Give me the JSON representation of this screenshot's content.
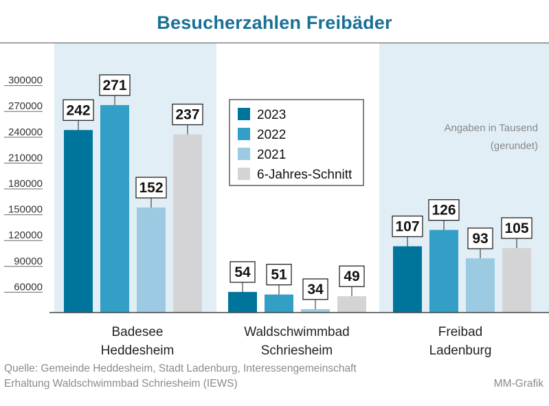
{
  "title": "Besucherzahlen Freibäder",
  "source_line1": "Quelle: Gemeinde Heddesheim, Stadt Ladenburg, Interessengemeinschaft",
  "source_line2": "Erhaltung Waldschwimmbad Schriesheim (IEWS)",
  "credit": "MM-Grafik",
  "note_line1": "Angaben in Tausend",
  "note_line2": "(gerundet)",
  "colors": {
    "title": "#1a6f95",
    "series": [
      "#00759c",
      "#339ec6",
      "#9bcae2",
      "#d4d4d6"
    ],
    "panel_bg": "#e2eef5"
  },
  "chart_data": {
    "type": "bar",
    "title": "Besucherzahlen Freibäder",
    "categories": [
      [
        "Badesee",
        "Heddesheim"
      ],
      [
        "Waldschwimmbad",
        "Schriesheim"
      ],
      [
        "Freibad",
        "Ladenburg"
      ]
    ],
    "series": [
      {
        "name": "2023",
        "values": [
          242000,
          54000,
          107000
        ],
        "labels": [
          "242",
          "54",
          "107"
        ]
      },
      {
        "name": "2022",
        "values": [
          271000,
          51000,
          126000
        ],
        "labels": [
          "271",
          "51",
          "126"
        ]
      },
      {
        "name": "2021",
        "values": [
          152000,
          34000,
          93000
        ],
        "labels": [
          "152",
          "34",
          "93"
        ]
      },
      {
        "name": "6-Jahres-Schnitt",
        "values": [
          237000,
          49000,
          105000
        ],
        "labels": [
          "237",
          "49",
          "105"
        ]
      }
    ],
    "yticks": [
      "60000",
      "90000",
      "120000",
      "150000",
      "180000",
      "210000",
      "240000",
      "270000",
      "300000"
    ],
    "ytick_values": [
      60000,
      90000,
      120000,
      150000,
      180000,
      210000,
      240000,
      270000,
      300000
    ],
    "legend_position": "top-center",
    "grid": false,
    "highlighted_categories": [
      0,
      2
    ]
  }
}
